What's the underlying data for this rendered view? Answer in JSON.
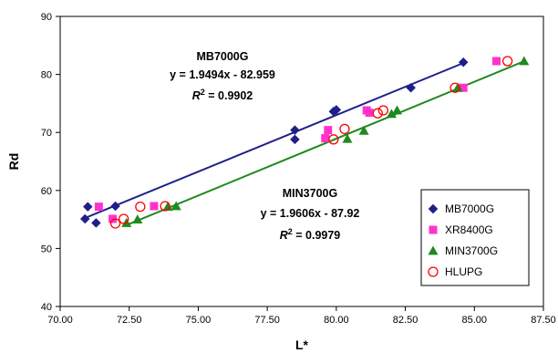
{
  "chart_data": {
    "type": "scatter",
    "xlabel": "L*",
    "ylabel": "Rd",
    "xlim": [
      70.0,
      87.5
    ],
    "ylim": [
      40,
      90
    ],
    "xticks": [
      "70.00",
      "72.50",
      "75.00",
      "77.50",
      "80.00",
      "82.50",
      "85.00",
      "87.50"
    ],
    "yticks": [
      "40",
      "50",
      "60",
      "70",
      "80",
      "90"
    ],
    "grid": false,
    "legend_position": "right",
    "series": [
      {
        "name": "MB7000G",
        "marker": "diamond",
        "color": "#1F1F8A",
        "points": [
          [
            70.9,
            55.1
          ],
          [
            71.0,
            57.2
          ],
          [
            71.3,
            54.4
          ],
          [
            72.0,
            57.3
          ],
          [
            78.5,
            70.4
          ],
          [
            78.5,
            68.8
          ],
          [
            79.9,
            73.6
          ],
          [
            80.0,
            73.9
          ],
          [
            82.7,
            77.7
          ],
          [
            84.6,
            82.1
          ]
        ]
      },
      {
        "name": "XR8400G",
        "marker": "square",
        "color": "#FF33CC",
        "points": [
          [
            71.4,
            57.2
          ],
          [
            71.9,
            55.1
          ],
          [
            73.4,
            57.3
          ],
          [
            79.6,
            69.0
          ],
          [
            79.7,
            70.4
          ],
          [
            81.1,
            73.8
          ],
          [
            81.2,
            73.4
          ],
          [
            84.6,
            77.7
          ],
          [
            85.8,
            82.3
          ]
        ]
      },
      {
        "name": "MIN3700G",
        "marker": "triangle",
        "color": "#1E8A1E",
        "points": [
          [
            72.4,
            54.4
          ],
          [
            72.8,
            55.0
          ],
          [
            73.9,
            57.2
          ],
          [
            74.2,
            57.3
          ],
          [
            80.4,
            68.9
          ],
          [
            81.0,
            70.3
          ],
          [
            82.0,
            73.2
          ],
          [
            82.2,
            73.8
          ],
          [
            84.4,
            77.7
          ],
          [
            86.8,
            82.3
          ]
        ]
      },
      {
        "name": "HLUPG",
        "marker": "circle-open",
        "color": "#FF0000",
        "points": [
          [
            72.0,
            54.3
          ],
          [
            72.3,
            55.1
          ],
          [
            72.9,
            57.2
          ],
          [
            73.8,
            57.3
          ],
          [
            79.9,
            68.8
          ],
          [
            80.3,
            70.6
          ],
          [
            81.5,
            73.3
          ],
          [
            81.7,
            73.8
          ],
          [
            84.3,
            77.7
          ],
          [
            86.2,
            82.3
          ]
        ]
      }
    ],
    "trendlines": [
      {
        "series": "MB7000G",
        "slope": 1.9494,
        "intercept": -82.959,
        "x_range": [
          70.9,
          84.6
        ],
        "color": "#1F1F8A"
      },
      {
        "series": "MIN3700G",
        "slope": 1.9606,
        "intercept": -87.92,
        "x_range": [
          72.4,
          86.8
        ],
        "color": "#1E8A1E"
      }
    ],
    "annotations": [
      {
        "name": "MB7000G",
        "equation": "y = 1.9494x - 82.959",
        "r2_label": "R",
        "r2_sup": "2",
        "r2_value": " = 0.9902"
      },
      {
        "name": "MIN3700G",
        "equation": "y = 1.9606x - 87.92",
        "r2_label": "R",
        "r2_sup": "2",
        "r2_value": " = 0.9979"
      }
    ]
  }
}
